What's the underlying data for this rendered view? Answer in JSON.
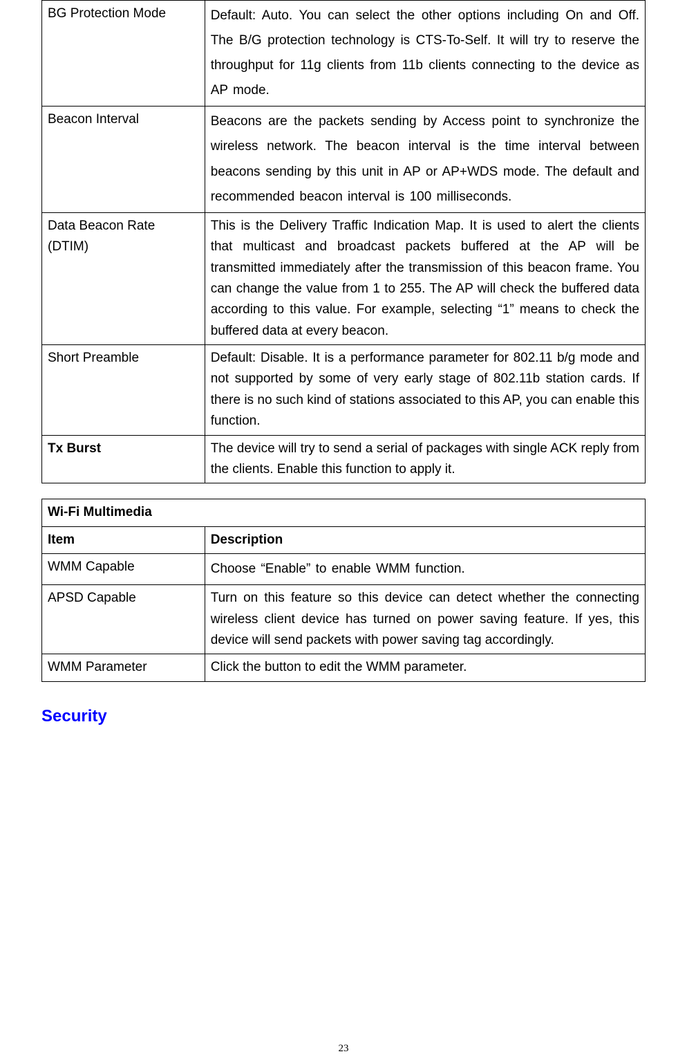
{
  "table1": {
    "rows": [
      {
        "item": "BG Protection Mode",
        "item_bold": false,
        "desc": "Default: Auto. You can select the other options including On and Off. The B/G protection technology is CTS-To-Self. It will try to reserve the throughput for 11g clients from 11b clients connecting to the device as AP mode.",
        "loose": true
      },
      {
        "item": "Beacon Interval",
        "item_bold": false,
        "desc": "Beacons are the packets sending by Access point to synchronize the wireless network. The beacon interval is the time interval between beacons sending by this unit in AP or AP+WDS mode. The default and recommended beacon interval is 100 milliseconds.",
        "loose": true
      },
      {
        "item": "Data Beacon Rate (DTIM)",
        "item_bold": false,
        "desc": "This is the Delivery Traffic Indication Map. It is used to alert the clients that multicast and broadcast packets buffered at the AP will be transmitted immediately after the transmission of this beacon frame. You can change the value from 1 to 255. The AP will check the buffered data according to this value. For example, selecting “1” means to check the buffered data at every beacon.",
        "loose": false
      },
      {
        "item": "Short Preamble",
        "item_bold": false,
        "desc": "Default: Disable. It is a performance parameter for 802.11 b/g mode and not supported by some of very early stage of 802.11b station cards. If there is no such kind of stations associated to this AP, you can enable this function.",
        "loose": false
      },
      {
        "item": "Tx Burst",
        "item_bold": true,
        "desc": "The device will try to send a serial of packages with single ACK reply from the clients. Enable this function to apply it.",
        "loose": false
      }
    ]
  },
  "table2": {
    "title_row": "Wi-Fi Multimedia",
    "header": {
      "left": "Item",
      "right": "Description"
    },
    "rows": [
      {
        "item": "WMM Capable",
        "desc": "Choose “Enable” to enable WMM function.",
        "loose": true
      },
      {
        "item": "APSD Capable",
        "desc": "Turn on this feature so this device can detect whether the connecting wireless client device has turned on power saving feature. If yes, this device will send packets with power saving tag accordingly.",
        "loose": false
      },
      {
        "item": "WMM Parameter",
        "desc": "Click the button to edit the WMM parameter.",
        "loose": false
      }
    ]
  },
  "heading": "Security",
  "page_number": "23",
  "colors": {
    "heading": "#0000ff",
    "text": "#000000",
    "border": "#000000",
    "background": "#ffffff"
  }
}
